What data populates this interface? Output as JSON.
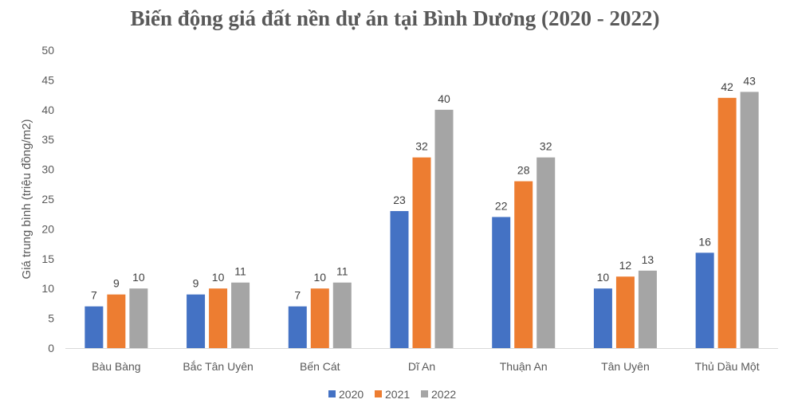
{
  "chart_data": {
    "type": "bar",
    "title": "Biến động giá đất nền dự án tại Bình Dương (2020 - 2022)",
    "xlabel": "",
    "ylabel": "Giá trung bình (triệu đồng/m2)",
    "ylim": [
      0,
      50
    ],
    "yticks": [
      0,
      5,
      10,
      15,
      20,
      25,
      30,
      35,
      40,
      45,
      50
    ],
    "grid": false,
    "legend": "bottom",
    "categories": [
      "Bàu Bàng",
      "Bắc Tân Uyên",
      "Bến Cát",
      "Dĩ An",
      "Thuận An",
      "Tân Uyên",
      "Thủ Dầu Một"
    ],
    "series": [
      {
        "name": "2020",
        "color": "#4472C4",
        "values": [
          7,
          9,
          7,
          23,
          22,
          10,
          16
        ]
      },
      {
        "name": "2021",
        "color": "#ED7D31",
        "values": [
          9,
          10,
          10,
          32,
          28,
          12,
          42
        ]
      },
      {
        "name": "2022",
        "color": "#A5A5A5",
        "values": [
          10,
          11,
          11,
          40,
          32,
          13,
          43
        ]
      }
    ]
  }
}
